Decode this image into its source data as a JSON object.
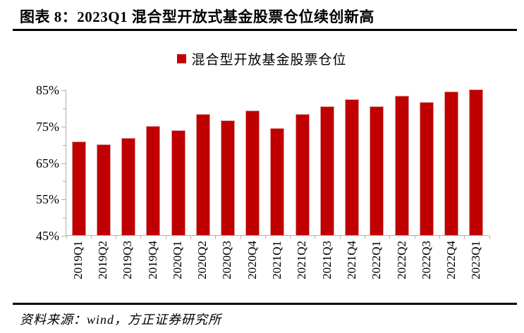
{
  "header": {
    "title": "图表 8：2023Q1 混合型开放式基金股票仓位续创新高"
  },
  "chart_data": {
    "type": "bar",
    "title": "图表 8：2023Q1 混合型开放式基金股票仓位续创新高",
    "legend": {
      "label": "混合型开放基金股票仓位",
      "position": "top",
      "swatch_color": "#C00000"
    },
    "categories": [
      "2019Q1",
      "2019Q2",
      "2019Q3",
      "2019Q4",
      "2020Q1",
      "2020Q2",
      "2020Q3",
      "2020Q4",
      "2021Q1",
      "2021Q2",
      "2021Q3",
      "2021Q4",
      "2022Q1",
      "2022Q2",
      "2022Q3",
      "2022Q4",
      "2023Q1"
    ],
    "values": [
      70.7,
      70.0,
      71.7,
      75.0,
      73.8,
      78.3,
      76.6,
      79.2,
      74.3,
      78.2,
      80.4,
      82.4,
      80.3,
      83.3,
      81.6,
      84.4,
      85.1
    ],
    "unit": "%",
    "xlabel": "",
    "ylabel": "",
    "ylim": [
      45,
      85
    ],
    "y_ticks": [
      {
        "value": 85,
        "label": "85%"
      },
      {
        "value": 75,
        "label": "75%"
      },
      {
        "value": 65,
        "label": "65%"
      },
      {
        "value": 55,
        "label": "55%"
      },
      {
        "value": 45,
        "label": "45%"
      }
    ],
    "y_minor_ticks": [
      80,
      70,
      60,
      50
    ],
    "grid": false,
    "bar_color": "#C00000",
    "axis_color": "#ADADAD"
  },
  "footer": {
    "source": "资料来源：wind，方正证券研究所"
  }
}
